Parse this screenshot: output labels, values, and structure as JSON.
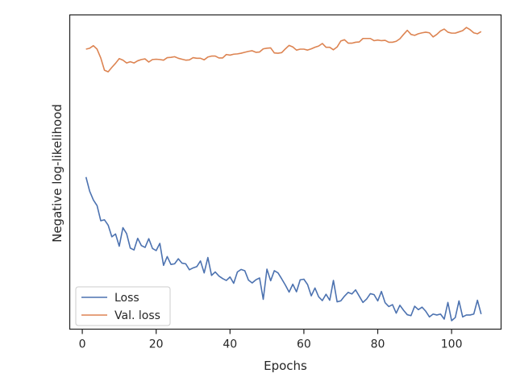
{
  "chart_data": {
    "type": "line",
    "title": "",
    "xlabel": "Epochs",
    "ylabel": "Negative log-likelihood",
    "xlim": [
      -3.4,
      113.4
    ],
    "ylim": [
      0,
      100
    ],
    "xticks": [
      0,
      20,
      40,
      60,
      80,
      100
    ],
    "y_tick_labels_shown": false,
    "grid": false,
    "legend": {
      "location": "lower-left",
      "entries": [
        "Loss",
        "Val. loss"
      ]
    },
    "x": [
      1,
      2,
      3,
      4,
      5,
      6,
      7,
      8,
      9,
      10,
      11,
      12,
      13,
      14,
      15,
      16,
      17,
      18,
      19,
      20,
      21,
      22,
      23,
      24,
      25,
      26,
      27,
      28,
      29,
      30,
      31,
      32,
      33,
      34,
      35,
      36,
      37,
      38,
      39,
      40,
      41,
      42,
      43,
      44,
      45,
      46,
      47,
      48,
      49,
      50,
      51,
      52,
      53,
      54,
      55,
      56,
      57,
      58,
      59,
      60,
      61,
      62,
      63,
      64,
      65,
      66,
      67,
      68,
      69,
      70,
      71,
      72,
      73,
      74,
      75,
      76,
      77,
      78,
      79,
      80,
      81,
      82,
      83,
      84,
      85,
      86,
      87,
      88,
      89,
      90,
      91,
      92,
      93,
      94,
      95,
      96,
      97,
      98,
      99,
      100,
      101,
      102,
      103,
      104,
      105,
      106,
      107,
      108
    ],
    "series": [
      {
        "name": "Loss",
        "color": "#4c72b0",
        "values": [
          48.4,
          43.9,
          41.1,
          39.3,
          34.5,
          34.8,
          33.1,
          29.4,
          30.3,
          26.4,
          32.3,
          30.4,
          25.8,
          25.2,
          28.9,
          26.6,
          26.0,
          28.8,
          25.7,
          25.0,
          27.3,
          20.3,
          23.1,
          20.6,
          20.8,
          22.4,
          21.0,
          20.8,
          18.9,
          19.5,
          19.9,
          21.7,
          17.9,
          22.8,
          17.1,
          18.2,
          16.9,
          16.1,
          15.5,
          16.6,
          14.6,
          18.2,
          19.0,
          18.6,
          15.6,
          14.7,
          15.7,
          16.3,
          9.5,
          19.1,
          15.4,
          18.6,
          17.9,
          16.0,
          14.0,
          11.8,
          14.3,
          11.9,
          15.7,
          15.9,
          14.2,
          10.6,
          13.1,
          10.3,
          9.1,
          11.1,
          9.2,
          15.5,
          8.7,
          9.0,
          10.5,
          11.7,
          11.2,
          12.5,
          10.5,
          8.5,
          9.6,
          11.3,
          11.0,
          9.0,
          12.0,
          8.4,
          7.2,
          7.8,
          5.1,
          7.6,
          6.0,
          4.6,
          4.3,
          7.3,
          6.2,
          7.0,
          5.7,
          3.9,
          4.8,
          4.5,
          4.8,
          3.2,
          8.5,
          2.7,
          3.7,
          9.0,
          3.9,
          4.5,
          4.5,
          4.8,
          9.2,
          4.8
        ]
      },
      {
        "name": "Val. loss",
        "color": "#dd8452",
        "values": [
          89.1,
          89.4,
          90.2,
          89.1,
          86.3,
          82.4,
          81.9,
          83.3,
          84.6,
          86.1,
          85.6,
          84.7,
          85.1,
          84.7,
          85.4,
          85.8,
          86.0,
          85.0,
          85.8,
          85.9,
          85.8,
          85.6,
          86.4,
          86.5,
          86.7,
          86.2,
          85.9,
          85.6,
          85.7,
          86.4,
          86.2,
          86.2,
          85.7,
          86.6,
          86.9,
          86.9,
          86.3,
          86.3,
          87.4,
          87.2,
          87.5,
          87.6,
          87.8,
          88.1,
          88.4,
          88.6,
          88.1,
          88.2,
          89.2,
          89.4,
          89.5,
          87.9,
          87.8,
          88.0,
          89.2,
          90.3,
          89.8,
          88.8,
          89.1,
          89.1,
          88.8,
          89.2,
          89.7,
          90.1,
          90.9,
          89.7,
          89.7,
          88.9,
          89.8,
          91.7,
          92.1,
          91.0,
          91.0,
          91.3,
          91.4,
          92.5,
          92.5,
          92.5,
          91.8,
          92.0,
          91.8,
          91.9,
          91.3,
          91.3,
          91.6,
          92.4,
          93.8,
          95.1,
          93.8,
          93.5,
          94.0,
          94.3,
          94.5,
          94.3,
          93.0,
          93.8,
          94.9,
          95.5,
          94.5,
          94.2,
          94.2,
          94.6,
          95.0,
          96.0,
          95.3,
          94.3,
          94.0,
          94.7
        ]
      }
    ]
  }
}
